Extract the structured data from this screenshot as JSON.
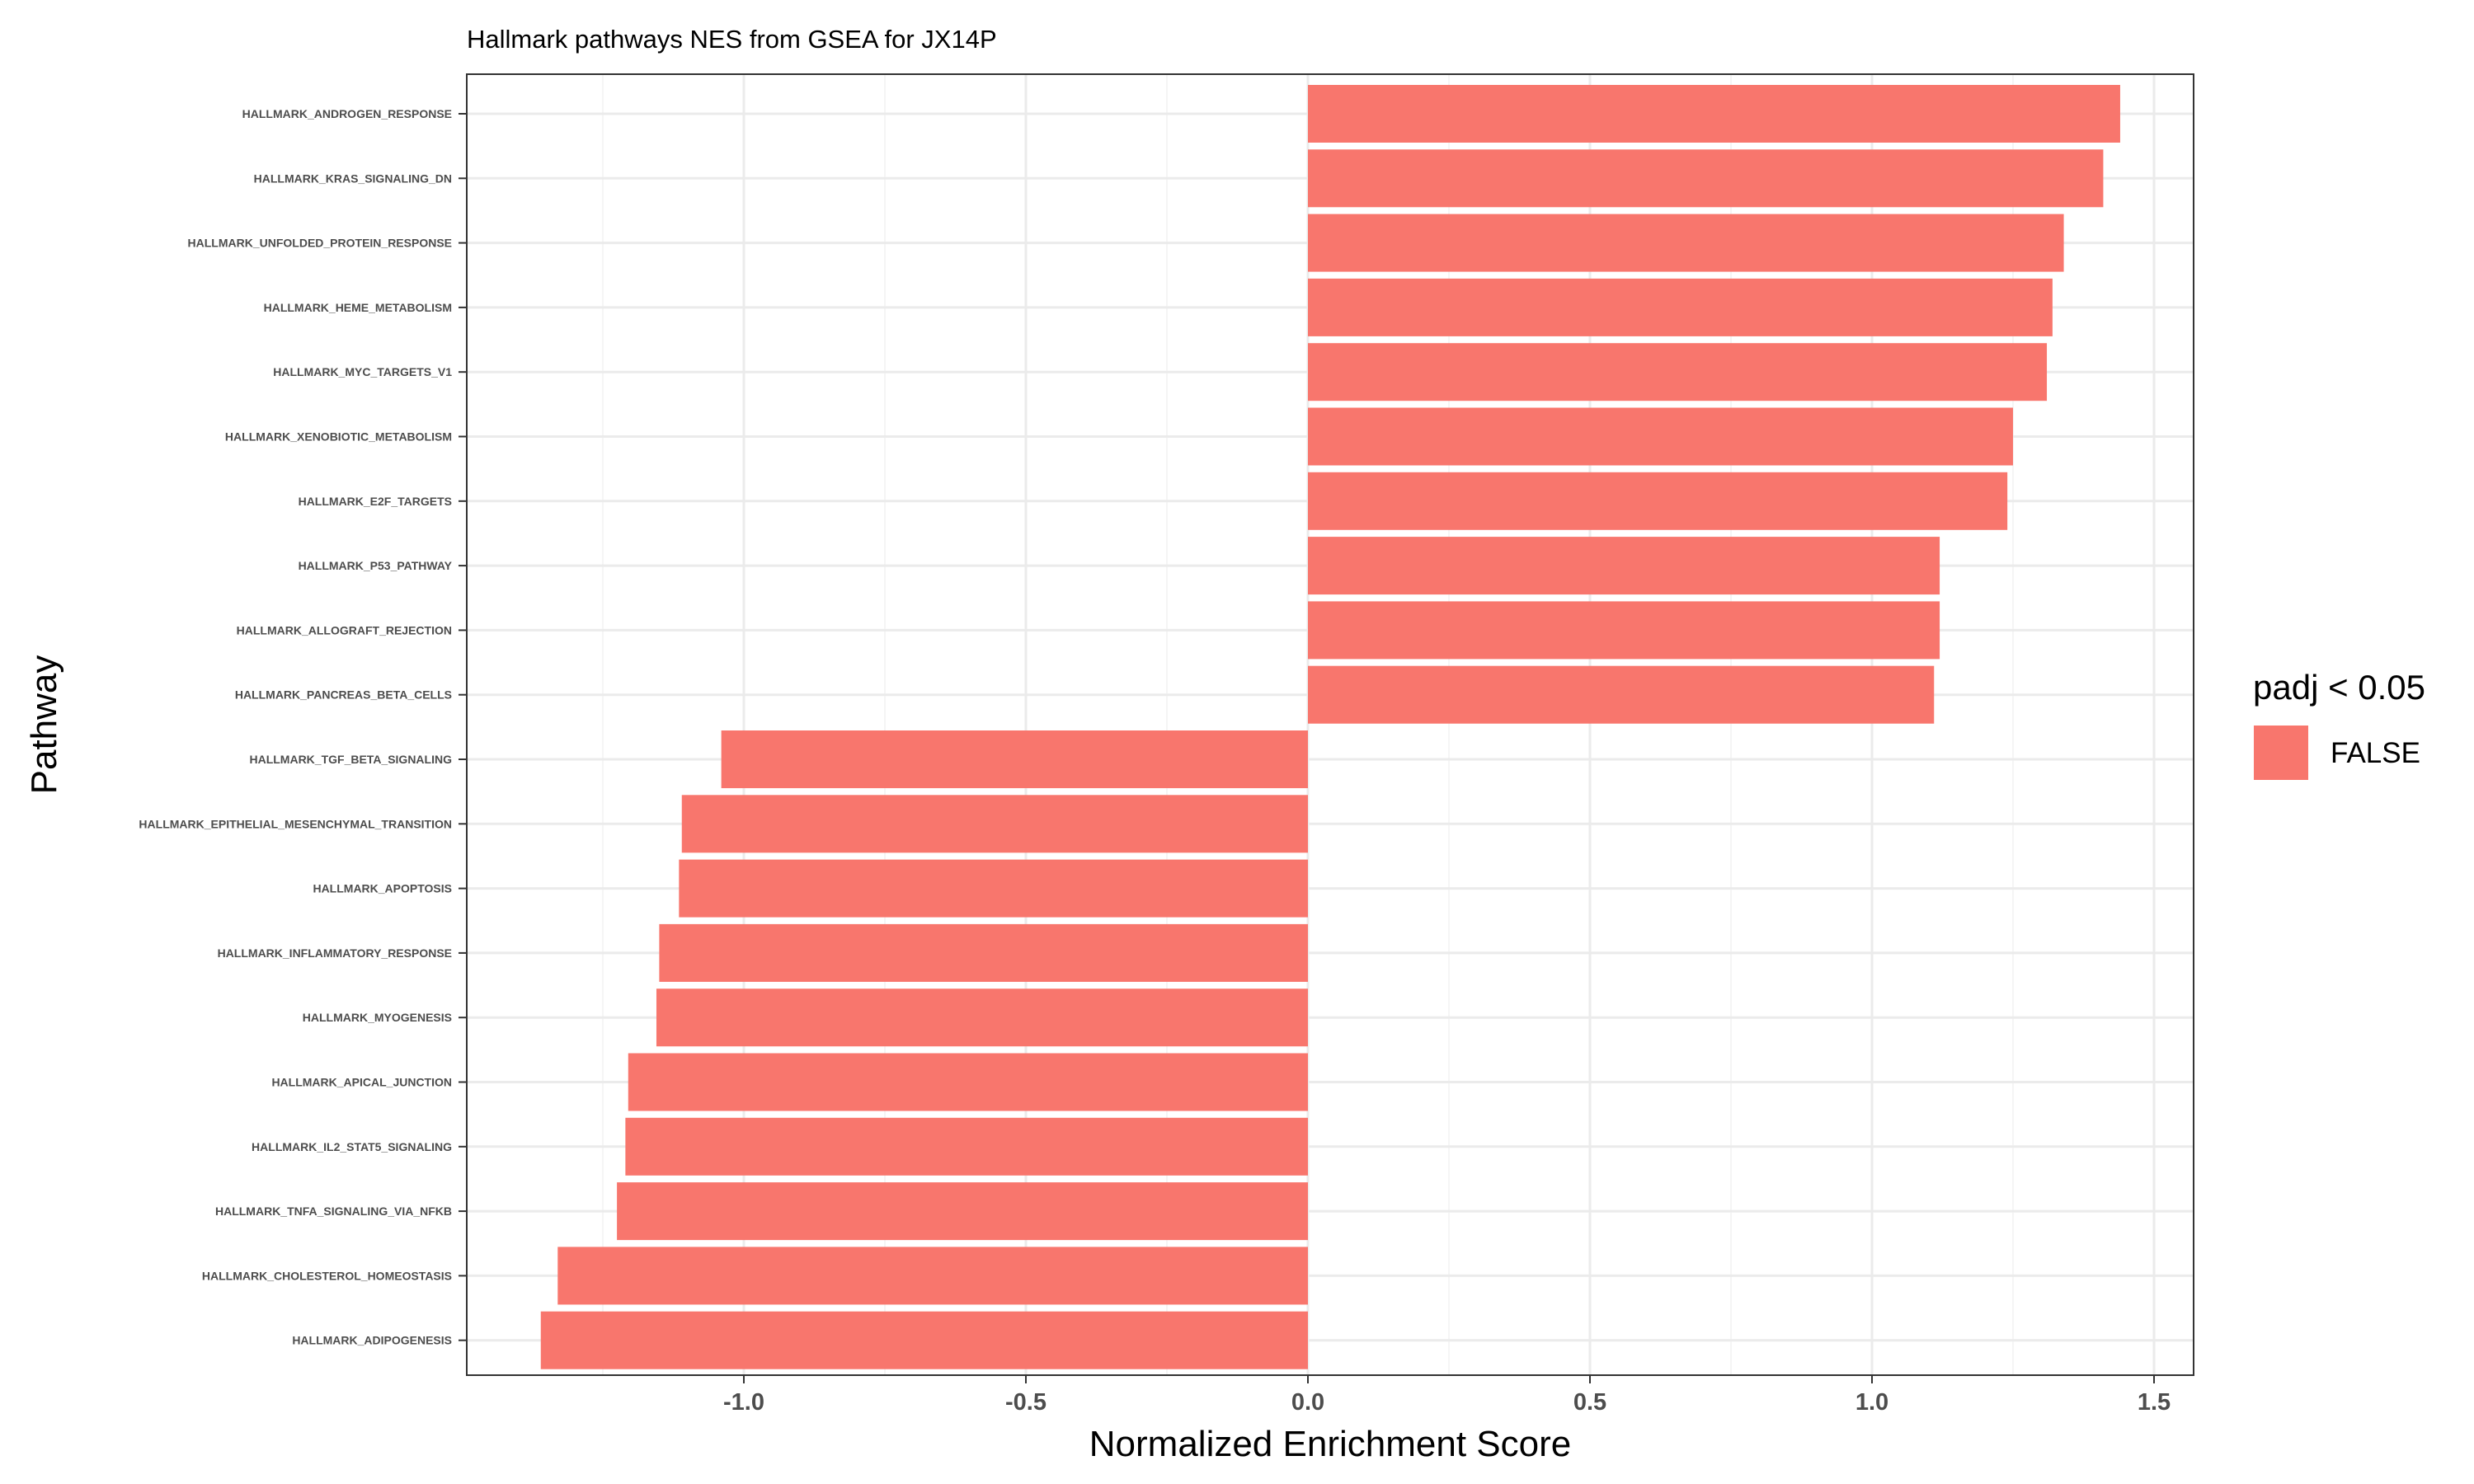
{
  "chart_data": {
    "type": "bar",
    "orientation": "horizontal",
    "title": "Hallmark pathways NES from GSEA for JX14P",
    "xlabel": "Normalized Enrichment Score",
    "ylabel": "Pathway",
    "xlim": [
      -1.5,
      1.58
    ],
    "x_ticks": [
      -1.0,
      -0.5,
      0.0,
      0.5,
      1.0,
      1.5
    ],
    "x_tick_labels": [
      "-1.0",
      "-0.5",
      "0.0",
      "0.5",
      "1.0",
      "1.5"
    ],
    "grid": true,
    "bar_color": "#F8766D",
    "categories": [
      "HALLMARK_ANDROGEN_RESPONSE",
      "HALLMARK_KRAS_SIGNALING_DN",
      "HALLMARK_UNFOLDED_PROTEIN_RESPONSE",
      "HALLMARK_HEME_METABOLISM",
      "HALLMARK_MYC_TARGETS_V1",
      "HALLMARK_XENOBIOTIC_METABOLISM",
      "HALLMARK_E2F_TARGETS",
      "HALLMARK_P53_PATHWAY",
      "HALLMARK_ALLOGRAFT_REJECTION",
      "HALLMARK_PANCREAS_BETA_CELLS",
      "HALLMARK_TGF_BETA_SIGNALING",
      "HALLMARK_EPITHELIAL_MESENCHYMAL_TRANSITION",
      "HALLMARK_APOPTOSIS",
      "HALLMARK_INFLAMMATORY_RESPONSE",
      "HALLMARK_MYOGENESIS",
      "HALLMARK_APICAL_JUNCTION",
      "HALLMARK_IL2_STAT5_SIGNALING",
      "HALLMARK_TNFA_SIGNALING_VIA_NFKB",
      "HALLMARK_CHOLESTEROL_HOMEOSTASIS",
      "HALLMARK_ADIPOGENESIS"
    ],
    "values": [
      1.44,
      1.41,
      1.34,
      1.32,
      1.31,
      1.25,
      1.24,
      1.12,
      1.12,
      1.11,
      -1.04,
      -1.11,
      -1.115,
      -1.15,
      -1.155,
      -1.205,
      -1.21,
      -1.225,
      -1.33,
      -1.36
    ],
    "legend": {
      "title": "padj < 0.05",
      "items": [
        {
          "label": "FALSE",
          "color": "#F8766D"
        }
      ],
      "position": "right"
    }
  }
}
